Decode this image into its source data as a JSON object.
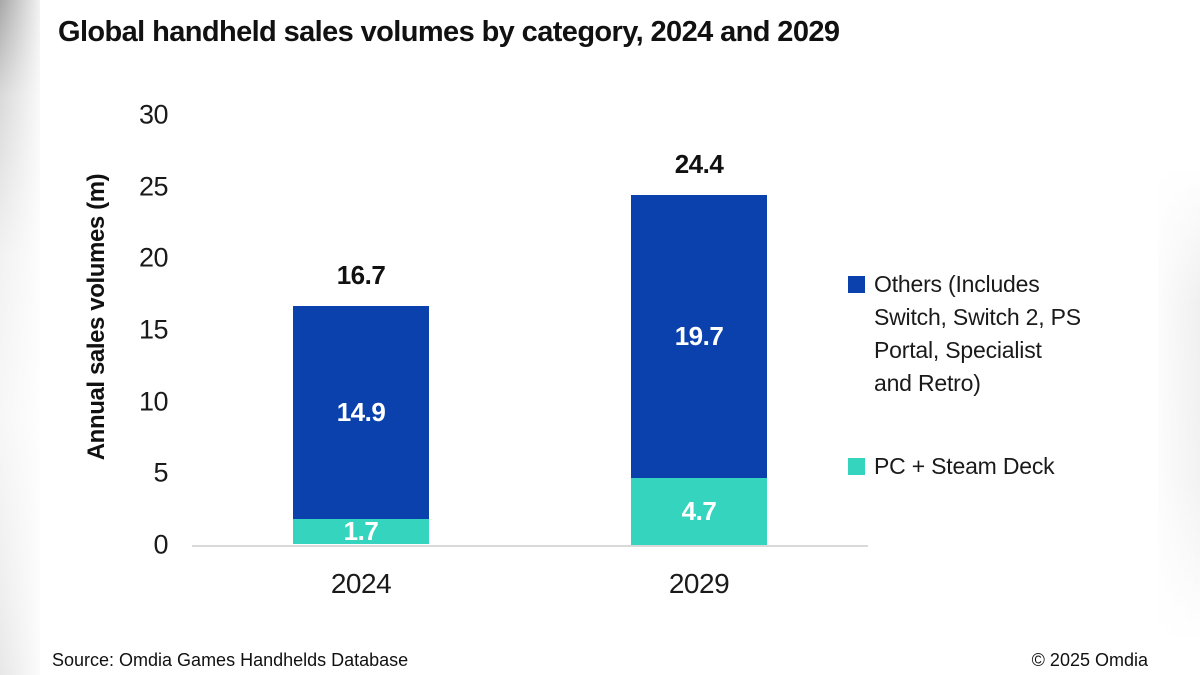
{
  "page": {
    "title": "Global handheld sales volumes by category, 2024 and 2029"
  },
  "chart_data": {
    "type": "bar",
    "stacked": true,
    "title": "Global handheld sales volumes by category, 2024 and 2029",
    "categories": [
      "2024",
      "2029"
    ],
    "series": [
      {
        "key": "pc-steam-deck",
        "name": "PC + Steam Deck",
        "color": "#35d4be",
        "values": [
          1.7,
          4.7
        ]
      },
      {
        "key": "others",
        "name": "Others (Includes Switch, Switch 2, PS Portal, Specialist and Retro)",
        "color": "#0a41ad",
        "values": [
          14.9,
          19.7
        ]
      }
    ],
    "totals": [
      16.7,
      24.4
    ],
    "xlabel": "",
    "ylabel": "Annual sales volumes (m)",
    "ylim": [
      0,
      30
    ],
    "yticks": [
      0,
      5,
      10,
      15,
      20,
      25,
      30
    ],
    "grid": false,
    "legend_position": "right",
    "axis_line_color": "#d9d9d9"
  },
  "axis": {
    "y_title": "Annual sales volumes (m)"
  },
  "legend": {
    "items": [
      {
        "key": "others",
        "color": "#0a41ad",
        "label": "Others (Includes\nSwitch, Switch 2, PS\nPortal, Specialist\nand Retro)"
      },
      {
        "key": "pc-steam-deck",
        "color": "#35d4be",
        "label": "PC + Steam Deck"
      }
    ]
  },
  "footer": {
    "source": "Source: Omdia Games Handhelds Database",
    "copyright": "© 2025 Omdia"
  }
}
